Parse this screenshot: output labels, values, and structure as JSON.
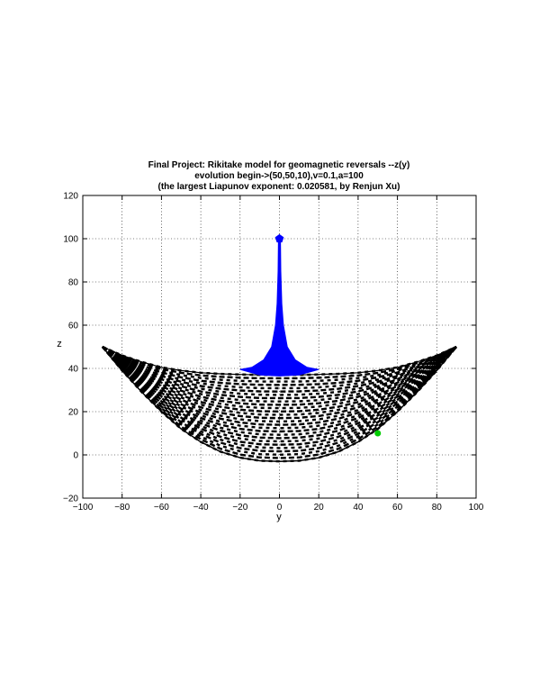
{
  "chart_data": {
    "type": "line",
    "title_lines": [
      "Final Project: Rikitake model for geomagnetic reversals --z(y)",
      "evolution begin->(50,50,10),v=0.1,a=100",
      "(the largest Liapunov exponent: 0.020581, by Renjun Xu)"
    ],
    "xlabel": "y",
    "ylabel": "z",
    "xlim": [
      -100,
      100
    ],
    "ylim": [
      -20,
      120
    ],
    "xticks": [
      -100,
      -80,
      -60,
      -40,
      -20,
      0,
      20,
      40,
      60,
      80,
      100
    ],
    "yticks": [
      -20,
      0,
      20,
      40,
      60,
      80,
      100,
      120
    ],
    "x_tick_labels": [
      "−100",
      "−80",
      "−60",
      "−40",
      "−20",
      "0",
      "20",
      "40",
      "60",
      "80",
      "100"
    ],
    "y_tick_labels": [
      "−20",
      "0",
      "20",
      "40",
      "60",
      "80",
      "100",
      "120"
    ],
    "grid": true,
    "grid_style": "dotted",
    "series": [
      {
        "color": "#0000ff",
        "style": "solid-fill",
        "points": [
          [
            -0.5,
            100
          ],
          [
            -0.7,
            85
          ],
          [
            -1.2,
            70
          ],
          [
            -2,
            60
          ],
          [
            -4,
            50
          ],
          [
            -8,
            44
          ],
          [
            -14,
            40.5
          ],
          [
            -20,
            39.5
          ],
          [
            -10,
            37
          ],
          [
            0,
            36.5
          ],
          [
            10,
            37
          ],
          [
            20,
            39.5
          ],
          [
            14,
            40.5
          ],
          [
            8,
            44
          ],
          [
            4,
            50
          ],
          [
            2,
            60
          ],
          [
            1.2,
            70
          ],
          [
            0.7,
            85
          ],
          [
            0.5,
            100
          ]
        ]
      },
      {
        "color": "#000000",
        "style": "dashed-band",
        "outer_points": [
          [
            -90,
            50
          ],
          [
            -80,
            39
          ],
          [
            -70,
            29
          ],
          [
            -60,
            20
          ],
          [
            -50,
            12
          ],
          [
            -40,
            6
          ],
          [
            -30,
            1.5
          ],
          [
            -20,
            -1.3
          ],
          [
            -10,
            -2.7
          ],
          [
            0,
            -3
          ],
          [
            10,
            -2.7
          ],
          [
            20,
            -1.3
          ],
          [
            30,
            1.5
          ],
          [
            40,
            6
          ],
          [
            50,
            12
          ],
          [
            60,
            20
          ],
          [
            70,
            29
          ],
          [
            80,
            39
          ],
          [
            90,
            50
          ]
        ],
        "inner_points": [
          [
            -90,
            50
          ],
          [
            -80,
            46
          ],
          [
            -70,
            43
          ],
          [
            -60,
            40.5
          ],
          [
            -50,
            39
          ],
          [
            -40,
            38
          ],
          [
            -30,
            37.5
          ],
          [
            -20,
            37.2
          ],
          [
            -10,
            37
          ],
          [
            0,
            37
          ],
          [
            10,
            37
          ],
          [
            20,
            37.2
          ],
          [
            30,
            37.5
          ],
          [
            40,
            38
          ],
          [
            50,
            39
          ],
          [
            60,
            40.5
          ],
          [
            70,
            43
          ],
          [
            80,
            46
          ],
          [
            90,
            50
          ]
        ]
      }
    ],
    "markers": [
      {
        "x": 0,
        "y": 100,
        "color": "#0000ff",
        "shape": "pentagon"
      },
      {
        "x": 50,
        "y": 10,
        "color": "#00cc00",
        "shape": "circle"
      }
    ]
  }
}
